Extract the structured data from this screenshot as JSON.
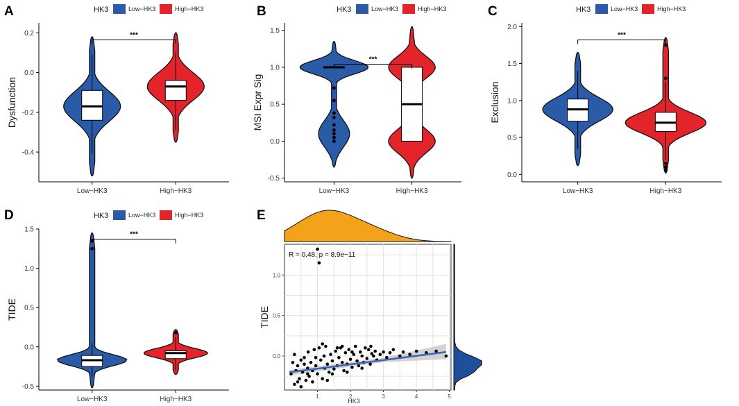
{
  "colors": {
    "low": "#2a5ba8",
    "high": "#e3242b",
    "density_top": "#f5a21b",
    "density_right": "#1f4e9c",
    "fit_line": "#3a66b3",
    "ci_band": "#c8c8c8"
  },
  "legend": {
    "title": "HK3",
    "low_label": "Low−HK3",
    "high_label": "High−HK3"
  },
  "chart_data": [
    {
      "panel": "A",
      "type": "violin",
      "ylabel": "Dysfunction",
      "categories": [
        "Low−HK3",
        "High−HK3"
      ],
      "ylim": [
        -0.55,
        0.25
      ],
      "yticks": [
        -0.4,
        -0.2,
        0.0,
        0.2
      ],
      "ytick_labels": [
        "-0.4",
        "-0.2",
        "0.0",
        "0.2"
      ],
      "groups": [
        {
          "name": "Low−HK3",
          "min": -0.52,
          "max": 0.18,
          "q1": -0.24,
          "median": -0.17,
          "q3": -0.09,
          "wlo": -0.41,
          "whi": 0.09,
          "mode": -0.17,
          "sigma": 0.075,
          "maxw": 0.34
        },
        {
          "name": "High−HK3",
          "min": -0.35,
          "max": 0.2,
          "q1": -0.14,
          "median": -0.07,
          "q3": -0.04,
          "wlo": -0.29,
          "whi": 0.1,
          "mode": -0.07,
          "sigma": 0.07,
          "maxw": 0.34
        }
      ],
      "significance": {
        "label": "***",
        "y": 0.165
      }
    },
    {
      "panel": "B",
      "type": "violin",
      "ylabel": "MSI Expr Sig",
      "categories": [
        "Low−HK3",
        "High−HK3"
      ],
      "ylim": [
        -0.55,
        1.6
      ],
      "yticks": [
        -0.5,
        0.0,
        0.5,
        1.0,
        1.5
      ],
      "ytick_labels": [
        "-0.5",
        "0.0",
        "0.5",
        "1.0",
        "1.5"
      ],
      "groups": [
        {
          "name": "Low−HK3",
          "min": -0.35,
          "max": 1.35,
          "q1": 1.0,
          "median": 1.0,
          "q3": 1.0,
          "wlo": 1.0,
          "whi": 1.0,
          "mode": 1.0,
          "sigma": 0.09,
          "maxw": 0.44,
          "mode2": 0.1,
          "w2": 0.2,
          "sigma2": 0.18
        },
        {
          "name": "High−HK3",
          "min": -0.5,
          "max": 1.55,
          "q1": 0.0,
          "median": 0.5,
          "q3": 1.0,
          "wlo": 0.0,
          "whi": 1.0,
          "mode": 1.0,
          "sigma": 0.15,
          "maxw": 0.3,
          "mode2": 0.0,
          "w2": 0.3,
          "sigma2": 0.16
        }
      ],
      "outliers": [
        [
          0,
          0.72
        ],
        [
          0,
          0.55
        ],
        [
          0,
          0.38
        ],
        [
          0,
          0.32
        ],
        [
          0,
          0.22
        ],
        [
          0,
          0.15
        ],
        [
          0,
          0.1
        ],
        [
          0,
          0.05
        ],
        [
          0,
          0.0
        ]
      ],
      "significance": {
        "label": "***",
        "y": 1.04
      }
    },
    {
      "panel": "C",
      "type": "violin",
      "ylabel": "Exclusion",
      "categories": [
        "Low−HK3",
        "High−HK3"
      ],
      "ylim": [
        -0.1,
        2.05
      ],
      "yticks": [
        0.0,
        0.5,
        1.0,
        1.5,
        2.0
      ],
      "ytick_labels": [
        "0.0",
        "0.5",
        "1.0",
        "1.5",
        "2.0"
      ],
      "groups": [
        {
          "name": "Low−HK3",
          "min": 0.12,
          "max": 1.65,
          "q1": 0.72,
          "median": 0.88,
          "q3": 1.02,
          "wlo": 0.35,
          "whi": 1.4,
          "mode": 0.88,
          "sigma": 0.16,
          "maxw": 0.4
        },
        {
          "name": "High−HK3",
          "min": 0.02,
          "max": 1.85,
          "q1": 0.58,
          "median": 0.7,
          "q3": 0.84,
          "wlo": 0.2,
          "whi": 1.25,
          "mode": 0.7,
          "sigma": 0.14,
          "maxw": 0.46
        }
      ],
      "outliers": [
        [
          1,
          1.75
        ],
        [
          1,
          1.3
        ],
        [
          1,
          0.15
        ],
        [
          1,
          0.1
        ],
        [
          1,
          0.06
        ]
      ],
      "significance": {
        "label": "***",
        "y": 1.82
      }
    },
    {
      "panel": "D",
      "type": "violin",
      "ylabel": "TIDE",
      "categories": [
        "Low−HK3",
        "High−HK3"
      ],
      "ylim": [
        -0.55,
        1.5
      ],
      "yticks": [
        -0.5,
        0.0,
        0.5,
        1.0,
        1.5
      ],
      "ytick_labels": [
        "-0.5",
        "0.0",
        "0.5",
        "1.0",
        "1.5"
      ],
      "groups": [
        {
          "name": "Low−HK3",
          "min": -0.52,
          "max": 1.45,
          "q1": -0.25,
          "median": -0.17,
          "q3": -0.11,
          "wlo": -0.38,
          "whi": 0.05,
          "mode": -0.17,
          "sigma": 0.07,
          "maxw": 0.42
        },
        {
          "name": "High−HK3",
          "min": -0.35,
          "max": 0.22,
          "q1": -0.15,
          "median": -0.08,
          "q3": -0.05,
          "wlo": -0.3,
          "whi": 0.12,
          "mode": -0.08,
          "sigma": 0.06,
          "maxw": 0.38
        }
      ],
      "outliers": [
        [
          0,
          1.35
        ],
        [
          0,
          1.25
        ],
        [
          1,
          0.18
        ]
      ],
      "significance": {
        "label": "***",
        "y": 1.37
      }
    },
    {
      "panel": "E",
      "type": "scatter",
      "xlabel": "HK3",
      "ylabel": "TIDE",
      "annotation": "R = 0.48, p = 8.9e−11",
      "xlim": [
        0,
        5.05
      ],
      "ylim": [
        -0.42,
        1.38
      ],
      "xticks": [
        1,
        2,
        3,
        4,
        5
      ],
      "xtick_labels": [
        "1",
        "2",
        "3",
        "4",
        "5"
      ],
      "yticks": [
        0.0,
        0.5,
        1.0
      ],
      "ytick_labels": [
        "0.0",
        "0.5",
        "1.0"
      ],
      "fit": {
        "x0": 0.15,
        "y0": -0.2,
        "x1": 4.9,
        "y1": 0.05
      },
      "points": [
        [
          1.0,
          1.32
        ],
        [
          1.05,
          1.15
        ],
        [
          0.25,
          -0.08
        ],
        [
          0.2,
          -0.22
        ],
        [
          0.3,
          -0.35
        ],
        [
          0.35,
          -0.18
        ],
        [
          0.4,
          -0.12
        ],
        [
          0.45,
          -0.28
        ],
        [
          0.5,
          -0.05
        ],
        [
          0.55,
          -0.2
        ],
        [
          0.6,
          -0.1
        ],
        [
          0.65,
          -0.3
        ],
        [
          0.7,
          -0.15
        ],
        [
          0.72,
          0.05
        ],
        [
          0.75,
          -0.25
        ],
        [
          0.8,
          -0.08
        ],
        [
          0.85,
          -0.18
        ],
        [
          0.9,
          0.08
        ],
        [
          0.95,
          -0.12
        ],
        [
          1.0,
          -0.22
        ],
        [
          1.05,
          0.1
        ],
        [
          1.1,
          -0.05
        ],
        [
          1.15,
          -0.28
        ],
        [
          1.2,
          0.0
        ],
        [
          1.22,
          -0.15
        ],
        [
          1.25,
          0.12
        ],
        [
          1.3,
          -0.1
        ],
        [
          1.35,
          -0.2
        ],
        [
          1.4,
          0.02
        ],
        [
          1.45,
          -0.06
        ],
        [
          1.5,
          -0.16
        ],
        [
          1.55,
          0.06
        ],
        [
          1.6,
          -0.12
        ],
        [
          1.65,
          -0.02
        ],
        [
          1.7,
          0.1
        ],
        [
          1.75,
          -0.08
        ],
        [
          1.8,
          -0.18
        ],
        [
          1.85,
          0.04
        ],
        [
          1.9,
          -0.1
        ],
        [
          1.95,
          0.08
        ],
        [
          2.0,
          -0.04
        ],
        [
          2.05,
          -0.14
        ],
        [
          2.1,
          0.02
        ],
        [
          2.15,
          0.12
        ],
        [
          2.2,
          -0.06
        ],
        [
          2.25,
          -0.12
        ],
        [
          2.3,
          0.05
        ],
        [
          2.35,
          0.0
        ],
        [
          2.4,
          -0.08
        ],
        [
          2.45,
          0.1
        ],
        [
          2.5,
          -0.03
        ],
        [
          2.55,
          0.08
        ],
        [
          2.6,
          -0.1
        ],
        [
          2.65,
          0.03
        ],
        [
          2.7,
          0.0
        ],
        [
          2.75,
          0.06
        ],
        [
          2.8,
          -0.05
        ],
        [
          2.9,
          0.02
        ],
        [
          3.0,
          0.05
        ],
        [
          3.1,
          -0.02
        ],
        [
          3.2,
          0.04
        ],
        [
          3.3,
          0.08
        ],
        [
          3.5,
          0.0
        ],
        [
          3.6,
          0.05
        ],
        [
          3.8,
          0.02
        ],
        [
          4.0,
          0.06
        ],
        [
          4.3,
          0.04
        ],
        [
          4.6,
          0.06
        ],
        [
          4.9,
          0.0
        ],
        [
          0.3,
          0.02
        ],
        [
          0.5,
          -0.38
        ],
        [
          0.6,
          -0.02
        ],
        [
          0.85,
          -0.32
        ],
        [
          1.15,
          0.15
        ],
        [
          1.45,
          -0.22
        ],
        [
          1.75,
          0.12
        ],
        [
          2.05,
          0.05
        ],
        [
          2.35,
          -0.15
        ],
        [
          2.62,
          0.12
        ],
        [
          0.4,
          -0.32
        ],
        [
          0.7,
          -0.22
        ],
        [
          0.95,
          -0.02
        ],
        [
          1.3,
          -0.3
        ],
        [
          1.6,
          0.1
        ],
        [
          1.9,
          -0.2
        ]
      ]
    }
  ],
  "panel_labels": [
    "A",
    "B",
    "C",
    "D",
    "E"
  ]
}
